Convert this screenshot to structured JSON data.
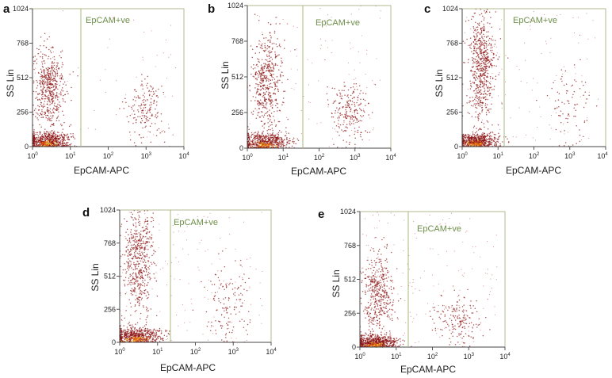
{
  "chart_data": [
    {
      "type": "scatter",
      "panel": "a",
      "xlabel": "EpCAM-APC",
      "ylabel": "SS Lin",
      "x_scale": "log",
      "xlim": [
        1,
        10000
      ],
      "ylim": [
        0,
        1024
      ],
      "x_ticks": [
        {
          "base": "10",
          "exp": "0",
          "value": 1
        },
        {
          "base": "10",
          "exp": "1",
          "value": 10
        },
        {
          "base": "10",
          "exp": "2",
          "value": 100
        },
        {
          "base": "10",
          "exp": "3",
          "value": 1000
        },
        {
          "base": "10",
          "exp": "4",
          "value": 10000
        }
      ],
      "y_ticks": [
        "0",
        "256",
        "512",
        "768",
        "1024"
      ],
      "gate": {
        "label": "EpCAM+ve",
        "x_threshold": 15
      },
      "populations": [
        {
          "name": "low-SS cluster",
          "x_center_log": 0.4,
          "x_spread_log": 0.3,
          "y_center": 40,
          "y_spread": 35,
          "density": 0.45
        },
        {
          "name": "high-SS cluster",
          "x_center_log": 0.45,
          "x_spread_log": 0.2,
          "y_center": 430,
          "y_spread": 150,
          "density": 0.38
        },
        {
          "name": "EpCAM+ve cluster",
          "x_center_log": 2.95,
          "x_spread_log": 0.25,
          "y_center": 280,
          "y_spread": 110,
          "density": 0.12
        },
        {
          "name": "background",
          "x_center_log": 1.8,
          "x_spread_log": 1.2,
          "y_center": 400,
          "y_spread": 350,
          "density": 0.05
        }
      ]
    },
    {
      "type": "scatter",
      "panel": "b",
      "xlabel": "EpCAM-APC",
      "ylabel": "SS Lin",
      "x_scale": "log",
      "xlim": [
        1,
        10000
      ],
      "ylim": [
        0,
        1024
      ],
      "x_ticks": [
        {
          "base": "10",
          "exp": "0",
          "value": 1
        },
        {
          "base": "10",
          "exp": "1",
          "value": 10
        },
        {
          "base": "10",
          "exp": "2",
          "value": 100
        },
        {
          "base": "10",
          "exp": "3",
          "value": 1000
        },
        {
          "base": "10",
          "exp": "4",
          "value": 10000
        }
      ],
      "y_ticks": [
        "0",
        "256",
        "512",
        "768",
        "1024"
      ],
      "gate": {
        "label": "EpCAM+ve",
        "x_threshold": 35
      },
      "populations": [
        {
          "name": "low-SS cluster",
          "x_center_log": 0.5,
          "x_spread_log": 0.35,
          "y_center": 40,
          "y_spread": 35,
          "density": 0.4
        },
        {
          "name": "high-SS cluster",
          "x_center_log": 0.55,
          "x_spread_log": 0.22,
          "y_center": 470,
          "y_spread": 170,
          "density": 0.36
        },
        {
          "name": "EpCAM+ve cluster",
          "x_center_log": 2.85,
          "x_spread_log": 0.25,
          "y_center": 260,
          "y_spread": 110,
          "density": 0.16
        },
        {
          "name": "background",
          "x_center_log": 1.8,
          "x_spread_log": 1.2,
          "y_center": 400,
          "y_spread": 350,
          "density": 0.08
        }
      ]
    },
    {
      "type": "scatter",
      "panel": "c",
      "xlabel": "EpCAM-APC",
      "ylabel": "SS Lin",
      "x_scale": "log",
      "xlim": [
        1,
        10000
      ],
      "ylim": [
        0,
        1024
      ],
      "x_ticks": [
        {
          "base": "10",
          "exp": "0",
          "value": 1
        },
        {
          "base": "10",
          "exp": "1",
          "value": 10
        },
        {
          "base": "10",
          "exp": "2",
          "value": 100
        },
        {
          "base": "10",
          "exp": "3",
          "value": 1000
        },
        {
          "base": "10",
          "exp": "4",
          "value": 10000
        }
      ],
      "y_ticks": [
        "0",
        "256",
        "512",
        "768",
        "1024"
      ],
      "gate": {
        "label": "EpCAM+ve",
        "x_threshold": 15
      },
      "populations": [
        {
          "name": "low-SS cluster",
          "x_center_log": 0.4,
          "x_spread_log": 0.3,
          "y_center": 40,
          "y_spread": 30,
          "density": 0.4
        },
        {
          "name": "high-SS cluster",
          "x_center_log": 0.55,
          "x_spread_log": 0.18,
          "y_center": 600,
          "y_spread": 220,
          "density": 0.46
        },
        {
          "name": "EpCAM+ve cluster",
          "x_center_log": 3.0,
          "x_spread_log": 0.3,
          "y_center": 300,
          "y_spread": 150,
          "density": 0.06
        },
        {
          "name": "background",
          "x_center_log": 1.8,
          "x_spread_log": 1.2,
          "y_center": 400,
          "y_spread": 350,
          "density": 0.08
        }
      ]
    },
    {
      "type": "scatter",
      "panel": "d",
      "xlabel": "EpCAM-APC",
      "ylabel": "SS Lin",
      "x_scale": "log",
      "xlim": [
        1,
        10000
      ],
      "ylim": [
        0,
        1024
      ],
      "x_ticks": [
        {
          "base": "10",
          "exp": "0",
          "value": 1
        },
        {
          "base": "10",
          "exp": "1",
          "value": 10
        },
        {
          "base": "10",
          "exp": "2",
          "value": 100
        },
        {
          "base": "10",
          "exp": "3",
          "value": 1000
        },
        {
          "base": "10",
          "exp": "4",
          "value": 10000
        }
      ],
      "y_ticks": [
        "0",
        "256",
        "512",
        "768",
        "1024"
      ],
      "gate": {
        "label": "EpCAM+ve",
        "x_threshold": 25
      },
      "populations": [
        {
          "name": "low-SS cluster",
          "x_center_log": 0.45,
          "x_spread_log": 0.35,
          "y_center": 50,
          "y_spread": 35,
          "density": 0.4
        },
        {
          "name": "high-SS cluster",
          "x_center_log": 0.5,
          "x_spread_log": 0.2,
          "y_center": 620,
          "y_spread": 220,
          "density": 0.4
        },
        {
          "name": "EpCAM+ve cluster",
          "x_center_log": 2.9,
          "x_spread_log": 0.3,
          "y_center": 300,
          "y_spread": 160,
          "density": 0.1
        },
        {
          "name": "background",
          "x_center_log": 1.8,
          "x_spread_log": 1.2,
          "y_center": 400,
          "y_spread": 350,
          "density": 0.1
        }
      ]
    },
    {
      "type": "scatter",
      "panel": "e",
      "xlabel": "EpCAM-APC",
      "ylabel": "SS Lin",
      "x_scale": "log",
      "xlim": [
        1,
        10000
      ],
      "ylim": [
        0,
        1024
      ],
      "x_ticks": [
        {
          "base": "10",
          "exp": "0",
          "value": 1
        },
        {
          "base": "10",
          "exp": "1",
          "value": 10
        },
        {
          "base": "10",
          "exp": "2",
          "value": 100
        },
        {
          "base": "10",
          "exp": "3",
          "value": 1000
        },
        {
          "base": "10",
          "exp": "4",
          "value": 10000
        }
      ],
      "y_ticks": [
        "0",
        "256",
        "512",
        "768",
        "1024"
      ],
      "gate": {
        "label": "EpCAM+ve",
        "x_threshold": 20
      },
      "populations": [
        {
          "name": "low-SS cluster",
          "x_center_log": 0.4,
          "x_spread_log": 0.3,
          "y_center": 35,
          "y_spread": 30,
          "density": 0.45
        },
        {
          "name": "high-SS cluster",
          "x_center_log": 0.5,
          "x_spread_log": 0.2,
          "y_center": 400,
          "y_spread": 160,
          "density": 0.3
        },
        {
          "name": "EpCAM+ve cluster",
          "x_center_log": 2.7,
          "x_spread_log": 0.3,
          "y_center": 200,
          "y_spread": 90,
          "density": 0.12
        },
        {
          "name": "background",
          "x_center_log": 1.8,
          "x_spread_log": 1.2,
          "y_center": 400,
          "y_spread": 350,
          "density": 0.13
        }
      ]
    }
  ],
  "colors": {
    "background": "#ffffff",
    "frame": "#b3b98d",
    "gate": "#a8b97c",
    "gate_label": "#6f8f4a",
    "dot_sparse": "#b02020",
    "dot_dense": "#8a1010",
    "hot_core": "#f0c020"
  }
}
